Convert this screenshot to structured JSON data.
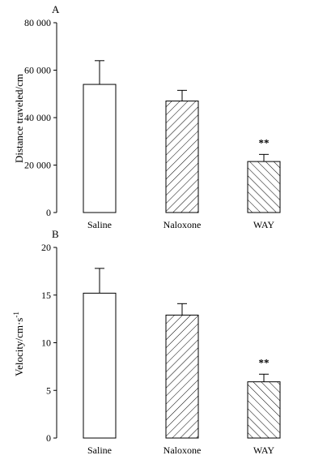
{
  "chart_data": [
    {
      "panel": "A",
      "type": "bar",
      "categories": [
        "Saline",
        "Naloxone",
        "WAY"
      ],
      "values": [
        54000,
        47000,
        21500
      ],
      "errors": [
        10000,
        4500,
        3000
      ],
      "significance": [
        "",
        "",
        "**"
      ],
      "fill": [
        "none",
        "hatch-back",
        "hatch-forward"
      ],
      "ylabel": "Distance traveled/cm",
      "ylim": [
        0,
        80000
      ],
      "yticks": [
        0,
        20000,
        40000,
        60000,
        80000
      ],
      "ytick_labels": [
        "0",
        "20 000",
        "40 000",
        "60 000",
        "80 000"
      ]
    },
    {
      "panel": "B",
      "type": "bar",
      "categories": [
        "Saline",
        "Naloxone",
        "WAY"
      ],
      "values": [
        15.2,
        12.9,
        5.9
      ],
      "errors": [
        2.6,
        1.2,
        0.8
      ],
      "significance": [
        "",
        "",
        "**"
      ],
      "fill": [
        "none",
        "hatch-back",
        "hatch-forward"
      ],
      "ylabel": "Velocity/cm·s",
      "ylabel_superscript": "-1",
      "ylim": [
        0,
        20
      ],
      "yticks": [
        0,
        5,
        10,
        15,
        20
      ],
      "ytick_labels": [
        "0",
        "5",
        "10",
        "15",
        "20"
      ]
    }
  ],
  "colors": {
    "axis": "#000000",
    "bar_outline": "#000000",
    "bar_fill": "#ffffff"
  }
}
